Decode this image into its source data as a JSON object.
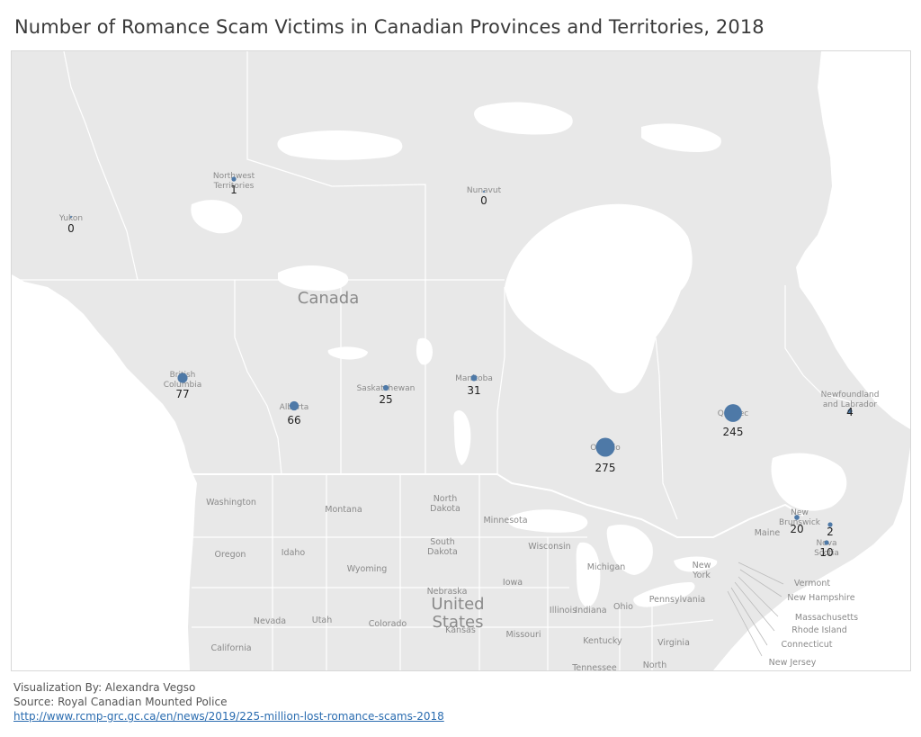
{
  "title": "Number of Romance Scam Victims in Canadian Provinces and Territories, 2018",
  "map": {
    "country_label": "Canada",
    "us_label_line1": "United",
    "us_label_line2": "States",
    "marker_color": "#4e79a7",
    "regions": [
      {
        "name_line1": "Yukon",
        "name_line2": "",
        "value": 0
      },
      {
        "name_line1": "Northwest",
        "name_line2": "Territories",
        "value": 1
      },
      {
        "name_line1": "Nunavut",
        "name_line2": "",
        "value": 0
      },
      {
        "name_line1": "British",
        "name_line2": "Columbia",
        "value": 77
      },
      {
        "name_line1": "Alberta",
        "name_line2": "",
        "value": 66
      },
      {
        "name_line1": "Saskatchewan",
        "name_line2": "",
        "value": 25
      },
      {
        "name_line1": "Manitoba",
        "name_line2": "",
        "value": 31
      },
      {
        "name_line1": "Ontario",
        "name_line2": "",
        "value": 275
      },
      {
        "name_line1": "Quebec",
        "name_line2": "",
        "value": 245
      },
      {
        "name_line1": "Newfoundland",
        "name_line2": "and Labrador",
        "value": 4
      },
      {
        "name_line1": "New",
        "name_line2": "Brunswick",
        "value": 20
      },
      {
        "name_line1": "Nova",
        "name_line2": "Scotia",
        "value": 10
      },
      {
        "name_line1": "",
        "name_line2": "",
        "value": 2
      }
    ],
    "states": [
      {
        "line1": "Washington",
        "line2": ""
      },
      {
        "line1": "Montana",
        "line2": ""
      },
      {
        "line1": "North",
        "line2": "Dakota"
      },
      {
        "line1": "Minnesota",
        "line2": ""
      },
      {
        "line1": "South",
        "line2": "Dakota"
      },
      {
        "line1": "Wisconsin",
        "line2": ""
      },
      {
        "line1": "Oregon",
        "line2": ""
      },
      {
        "line1": "Idaho",
        "line2": ""
      },
      {
        "line1": "Wyoming",
        "line2": ""
      },
      {
        "line1": "Michigan",
        "line2": ""
      },
      {
        "line1": "Nebraska",
        "line2": ""
      },
      {
        "line1": "Iowa",
        "line2": ""
      },
      {
        "line1": "Nevada",
        "line2": ""
      },
      {
        "line1": "Utah",
        "line2": ""
      },
      {
        "line1": "Colorado",
        "line2": ""
      },
      {
        "line1": "Kansas",
        "line2": ""
      },
      {
        "line1": "Missouri",
        "line2": ""
      },
      {
        "line1": "Illinois",
        "line2": ""
      },
      {
        "line1": "Indiana",
        "line2": ""
      },
      {
        "line1": "Ohio",
        "line2": ""
      },
      {
        "line1": "Pennsylvania",
        "line2": ""
      },
      {
        "line1": "New",
        "line2": "York"
      },
      {
        "line1": "Kentucky",
        "line2": ""
      },
      {
        "line1": "Virginia",
        "line2": ""
      },
      {
        "line1": "California",
        "line2": ""
      },
      {
        "line1": "Tennessee",
        "line2": ""
      },
      {
        "line1": "North",
        "line2": ""
      },
      {
        "line1": "Maine",
        "line2": ""
      },
      {
        "line1": "Vermont",
        "line2": ""
      },
      {
        "line1": "New Hampshire",
        "line2": ""
      },
      {
        "line1": "Massachusetts",
        "line2": ""
      },
      {
        "line1": "Rhode Island",
        "line2": ""
      },
      {
        "line1": "Connecticut",
        "line2": ""
      },
      {
        "line1": "New Jersey",
        "line2": ""
      }
    ]
  },
  "footer": {
    "credit": "Visualization By: Alexandra Vegso",
    "source": "Source: Royal Canadian Mounted Police",
    "link": "http://www.rcmp-grc.gc.ca/en/news/2019/225-million-lost-romance-scams-2018"
  }
}
